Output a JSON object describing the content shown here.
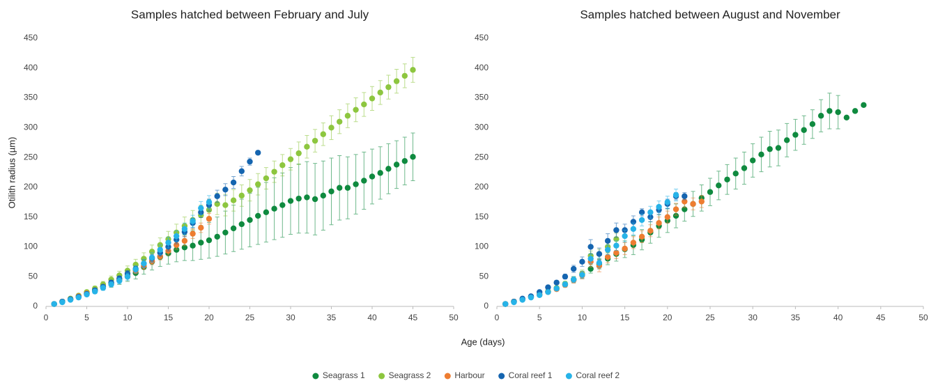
{
  "chart_data": [
    {
      "type": "scatter",
      "title": "Samples hatched between February and July",
      "xlabel": "Age (days)",
      "ylabel": "Otilith radius (µm)",
      "xlim": [
        0,
        50
      ],
      "xticks": [
        0,
        5,
        10,
        15,
        20,
        25,
        30,
        35,
        40,
        45,
        50
      ],
      "ylim": [
        0,
        450
      ],
      "yticks": [
        0,
        50,
        100,
        150,
        200,
        250,
        300,
        350,
        400,
        450
      ],
      "legend": "bottom",
      "series": [
        {
          "name": "Seagrass 1",
          "color": "#0f8a3f",
          "x": [
            1,
            2,
            3,
            4,
            5,
            6,
            7,
            8,
            9,
            10,
            11,
            12,
            13,
            14,
            15,
            16,
            17,
            18,
            19,
            20,
            21,
            22,
            23,
            24,
            25,
            26,
            27,
            28,
            29,
            30,
            31,
            32,
            33,
            34,
            35,
            36,
            37,
            38,
            39,
            40,
            41,
            42,
            43,
            44,
            45
          ],
          "values": [
            4,
            8,
            12,
            16,
            21,
            27,
            33,
            38,
            44,
            50,
            56,
            66,
            75,
            83,
            89,
            95,
            99,
            102,
            107,
            111,
            117,
            124,
            131,
            138,
            145,
            152,
            158,
            164,
            170,
            177,
            181,
            183,
            180,
            186,
            193,
            199,
            199,
            205,
            211,
            218,
            224,
            231,
            238,
            244,
            251
          ],
          "errors": [
            1,
            1,
            2,
            2,
            3,
            4,
            5,
            6,
            7,
            8,
            10,
            12,
            14,
            16,
            18,
            20,
            22,
            25,
            28,
            30,
            33,
            36,
            39,
            42,
            45,
            48,
            50,
            52,
            54,
            56,
            58,
            60,
            60,
            58,
            56,
            54,
            52,
            50,
            48,
            46,
            44,
            42,
            40,
            40,
            40
          ]
        },
        {
          "name": "Seagrass 2",
          "color": "#8dc63f",
          "x": [
            1,
            2,
            3,
            4,
            5,
            6,
            7,
            8,
            9,
            10,
            11,
            12,
            13,
            14,
            15,
            16,
            17,
            18,
            19,
            20,
            21,
            22,
            23,
            24,
            25,
            26,
            27,
            28,
            29,
            30,
            31,
            32,
            33,
            34,
            35,
            36,
            37,
            38,
            39,
            40,
            41,
            42,
            43,
            44,
            45
          ],
          "values": [
            4,
            8,
            13,
            18,
            24,
            30,
            37,
            45,
            52,
            60,
            70,
            80,
            92,
            103,
            113,
            124,
            135,
            145,
            153,
            162,
            172,
            170,
            178,
            186,
            195,
            205,
            215,
            226,
            237,
            247,
            257,
            268,
            278,
            289,
            300,
            310,
            320,
            330,
            339,
            349,
            359,
            368,
            378,
            387,
            397
          ],
          "errors": [
            1,
            1,
            2,
            2,
            3,
            4,
            5,
            6,
            7,
            8,
            9,
            10,
            11,
            12,
            13,
            14,
            15,
            16,
            17,
            18,
            18,
            18,
            18,
            18,
            18,
            18,
            18,
            18,
            18,
            18,
            19,
            19,
            19,
            19,
            20,
            20,
            20,
            20,
            20,
            20,
            20,
            20,
            20,
            20,
            21
          ]
        },
        {
          "name": "Harbour",
          "color": "#ee7d31",
          "x": [
            1,
            2,
            3,
            4,
            5,
            6,
            7,
            8,
            9,
            10,
            11,
            12,
            13,
            14,
            15,
            16,
            17,
            18,
            19,
            20
          ],
          "values": [
            4,
            8,
            12,
            17,
            22,
            27,
            33,
            39,
            45,
            52,
            60,
            68,
            76,
            84,
            93,
            103,
            110,
            122,
            132,
            147
          ],
          "errors": [
            1,
            1,
            2,
            2,
            2,
            3,
            3,
            4,
            4,
            5,
            5,
            6,
            6,
            6,
            7,
            7,
            8,
            8,
            8,
            9
          ]
        },
        {
          "name": "Coral reef 1",
          "color": "#1565b0",
          "x": [
            1,
            2,
            3,
            4,
            5,
            6,
            7,
            8,
            9,
            10,
            11,
            12,
            13,
            14,
            15,
            16,
            17,
            18,
            19,
            20,
            21,
            22,
            23,
            24,
            25,
            26
          ],
          "values": [
            4,
            8,
            12,
            16,
            21,
            27,
            33,
            40,
            47,
            55,
            63,
            72,
            81,
            90,
            100,
            112,
            125,
            140,
            158,
            170,
            185,
            196,
            208,
            227,
            243,
            258
          ],
          "errors": [
            1,
            1,
            1,
            2,
            2,
            3,
            3,
            4,
            4,
            5,
            5,
            6,
            6,
            6,
            7,
            7,
            8,
            8,
            9,
            10,
            10,
            10,
            10,
            8,
            6,
            1
          ]
        },
        {
          "name": "Coral reef 2",
          "color": "#27b3e8",
          "x": [
            1,
            2,
            3,
            4,
            5,
            6,
            7,
            8,
            9,
            10,
            11,
            12,
            13,
            14,
            15,
            16,
            17,
            18,
            19,
            20
          ],
          "values": [
            4,
            7,
            11,
            15,
            20,
            25,
            31,
            37,
            43,
            50,
            62,
            72,
            82,
            95,
            107,
            118,
            130,
            143,
            165,
            175
          ],
          "errors": [
            1,
            1,
            2,
            2,
            3,
            3,
            4,
            4,
            5,
            6,
            6,
            7,
            8,
            8,
            9,
            9,
            10,
            10,
            11,
            11
          ]
        }
      ]
    },
    {
      "type": "scatter",
      "title": "Samples hatched between August and November",
      "xlim": [
        0,
        50
      ],
      "xticks": [
        0,
        5,
        10,
        15,
        20,
        25,
        30,
        35,
        40,
        45,
        50
      ],
      "ylim": [
        0,
        450
      ],
      "yticks": [
        0,
        50,
        100,
        150,
        200,
        250,
        300,
        350,
        400,
        450
      ],
      "series": [
        {
          "name": "Seagrass 1",
          "color": "#0f8a3f",
          "x": [
            1,
            2,
            3,
            4,
            5,
            6,
            7,
            8,
            9,
            10,
            11,
            12,
            13,
            14,
            15,
            16,
            17,
            18,
            19,
            20,
            21,
            22,
            23,
            24,
            25,
            26,
            27,
            28,
            29,
            30,
            31,
            32,
            33,
            34,
            35,
            36,
            37,
            38,
            39,
            40,
            41,
            42,
            43
          ],
          "values": [
            4,
            8,
            12,
            16,
            20,
            25,
            30,
            37,
            45,
            53,
            63,
            71,
            80,
            88,
            96,
            103,
            112,
            124,
            135,
            144,
            152,
            163,
            172,
            182,
            192,
            203,
            213,
            223,
            232,
            245,
            255,
            264,
            266,
            279,
            288,
            296,
            306,
            320,
            328,
            326,
            317,
            328,
            338
          ],
          "errors": [
            1,
            1,
            1,
            2,
            2,
            3,
            3,
            4,
            5,
            6,
            7,
            8,
            10,
            12,
            14,
            16,
            17,
            18,
            19,
            20,
            20,
            20,
            21,
            22,
            23,
            24,
            25,
            26,
            27,
            28,
            29,
            30,
            30,
            28,
            26,
            24,
            24,
            27,
            30,
            28,
            null,
            null,
            null
          ]
        },
        {
          "name": "Seagrass 2",
          "color": "#8dc63f",
          "x": [
            1,
            2,
            3,
            4,
            5,
            6,
            7,
            8,
            9,
            10,
            11,
            12,
            13,
            14
          ],
          "values": [
            4,
            8,
            12,
            16,
            20,
            25,
            31,
            38,
            45,
            55,
            85,
            88,
            100,
            113
          ],
          "errors": [
            1,
            1,
            1,
            2,
            2,
            3,
            3,
            4,
            5,
            6,
            8,
            8,
            10,
            10
          ]
        },
        {
          "name": "Harbour",
          "color": "#ee7d31",
          "x": [
            1,
            2,
            3,
            4,
            5,
            6,
            7,
            8,
            9,
            10,
            11,
            12,
            13,
            14,
            15,
            16,
            17,
            18,
            19,
            20,
            21,
            22,
            23,
            24
          ],
          "values": [
            4,
            8,
            12,
            16,
            20,
            24,
            29,
            36,
            44,
            52,
            75,
            68,
            83,
            90,
            97,
            107,
            117,
            127,
            140,
            150,
            163,
            176,
            172,
            176
          ],
          "errors": [
            1,
            1,
            1,
            2,
            2,
            3,
            3,
            4,
            5,
            6,
            9,
            10,
            10,
            10,
            10,
            10,
            10,
            10,
            10,
            10,
            10,
            10,
            10,
            10
          ]
        },
        {
          "name": "Coral reef 1",
          "color": "#1565b0",
          "x": [
            1,
            2,
            3,
            4,
            5,
            6,
            7,
            8,
            9,
            10,
            11,
            12,
            13,
            14,
            15,
            16,
            17,
            18,
            19,
            20,
            21,
            22
          ],
          "values": [
            4,
            8,
            13,
            17,
            24,
            32,
            40,
            50,
            63,
            75,
            100,
            88,
            110,
            128,
            128,
            142,
            158,
            150,
            162,
            172,
            185,
            185
          ],
          "errors": [
            1,
            1,
            1,
            2,
            2,
            3,
            3,
            4,
            6,
            8,
            12,
            10,
            12,
            12,
            10,
            10,
            6,
            8,
            8,
            8,
            6,
            6
          ]
        },
        {
          "name": "Coral reef 2",
          "color": "#27b3e8",
          "x": [
            1,
            2,
            3,
            4,
            5,
            6,
            7,
            8,
            9,
            10,
            11,
            12,
            13,
            14,
            15,
            16,
            17,
            18,
            19,
            20,
            21
          ],
          "values": [
            4,
            7,
            11,
            15,
            19,
            24,
            30,
            37,
            45,
            53,
            80,
            73,
            95,
            102,
            118,
            130,
            145,
            158,
            167,
            175,
            187
          ],
          "errors": [
            1,
            1,
            1,
            2,
            2,
            3,
            3,
            4,
            5,
            6,
            8,
            8,
            8,
            8,
            10,
            10,
            10,
            10,
            10,
            10,
            10
          ]
        }
      ]
    }
  ]
}
